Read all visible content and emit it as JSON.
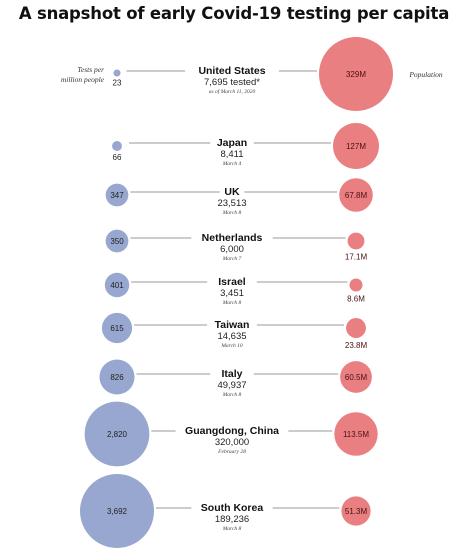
{
  "title": "A snapshot of early Covid-19 testing per capita",
  "colors": {
    "tests_bubble": "#98a7cf",
    "population_bubble": "#ea7f82",
    "connector": "#9a9a9a"
  },
  "chart_data": {
    "type": "bubble",
    "left_key": "Tests per million people",
    "right_key": "Population",
    "rows": [
      {
        "name": "United States",
        "tests": "7,695 tested*",
        "date": "as of March 11, 2020",
        "per_million": 23,
        "per_million_label": "23",
        "population_millions": 329,
        "population_label": "329M"
      },
      {
        "name": "Japan",
        "tests": "8,411",
        "date": "March 4",
        "per_million": 66,
        "per_million_label": "66",
        "population_millions": 127,
        "population_label": "127M"
      },
      {
        "name": "UK",
        "tests": "23,513",
        "date": "March 8",
        "per_million": 347,
        "per_million_label": "347",
        "population_millions": 67.8,
        "population_label": "67.8M"
      },
      {
        "name": "Netherlands",
        "tests": "6,000",
        "date": "March 7",
        "per_million": 350,
        "per_million_label": "350",
        "population_millions": 17.1,
        "population_label": "17.1M"
      },
      {
        "name": "Israel",
        "tests": "3,451",
        "date": "March 8",
        "per_million": 401,
        "per_million_label": "401",
        "population_millions": 8.6,
        "population_label": "8.6M"
      },
      {
        "name": "Taiwan",
        "tests": "14,635",
        "date": "March 10",
        "per_million": 615,
        "per_million_label": "615",
        "population_millions": 23.8,
        "population_label": "23.8M"
      },
      {
        "name": "Italy",
        "tests": "49,937",
        "date": "March 8",
        "per_million": 826,
        "per_million_label": "826",
        "population_millions": 60.5,
        "population_label": "60.5M"
      },
      {
        "name": "Guangdong, China",
        "tests": "320,000",
        "date": "February 28",
        "per_million": 2820,
        "per_million_label": "2,820",
        "population_millions": 113.5,
        "population_label": "113.5M"
      },
      {
        "name": "South Korea",
        "tests": "189,236",
        "date": "March 8",
        "per_million": 3692,
        "per_million_label": "3,692",
        "population_millions": 51.3,
        "population_label": "51.3M"
      }
    ]
  }
}
